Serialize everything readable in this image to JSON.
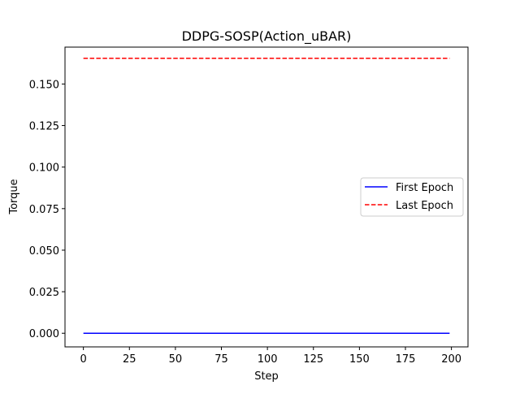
{
  "chart_data": {
    "type": "line",
    "title": "DDPG-SOSP(Action_uBAR)",
    "xlabel": "Step",
    "ylabel": "Torque",
    "xlim": [
      -10,
      209
    ],
    "ylim": [
      -0.0082,
      0.1722
    ],
    "x_ticks": [
      0,
      25,
      50,
      75,
      100,
      125,
      150,
      175,
      200
    ],
    "y_ticks": [
      0.0,
      0.025,
      0.05,
      0.075,
      0.1,
      0.125,
      0.15
    ],
    "y_tick_labels": [
      "0.000",
      "0.025",
      "0.050",
      "0.075",
      "0.100",
      "0.125",
      "0.150"
    ],
    "grid": false,
    "legend_position": "center-right",
    "series": [
      {
        "name": "First Epoch",
        "color": "#0000ff",
        "linestyle": "solid",
        "x": [
          0,
          199
        ],
        "y": [
          0.0,
          0.0
        ]
      },
      {
        "name": "Last Epoch",
        "color": "#ff0000",
        "linestyle": "dashed",
        "x": [
          0,
          199
        ],
        "y": [
          0.1655,
          0.1655
        ]
      }
    ]
  }
}
